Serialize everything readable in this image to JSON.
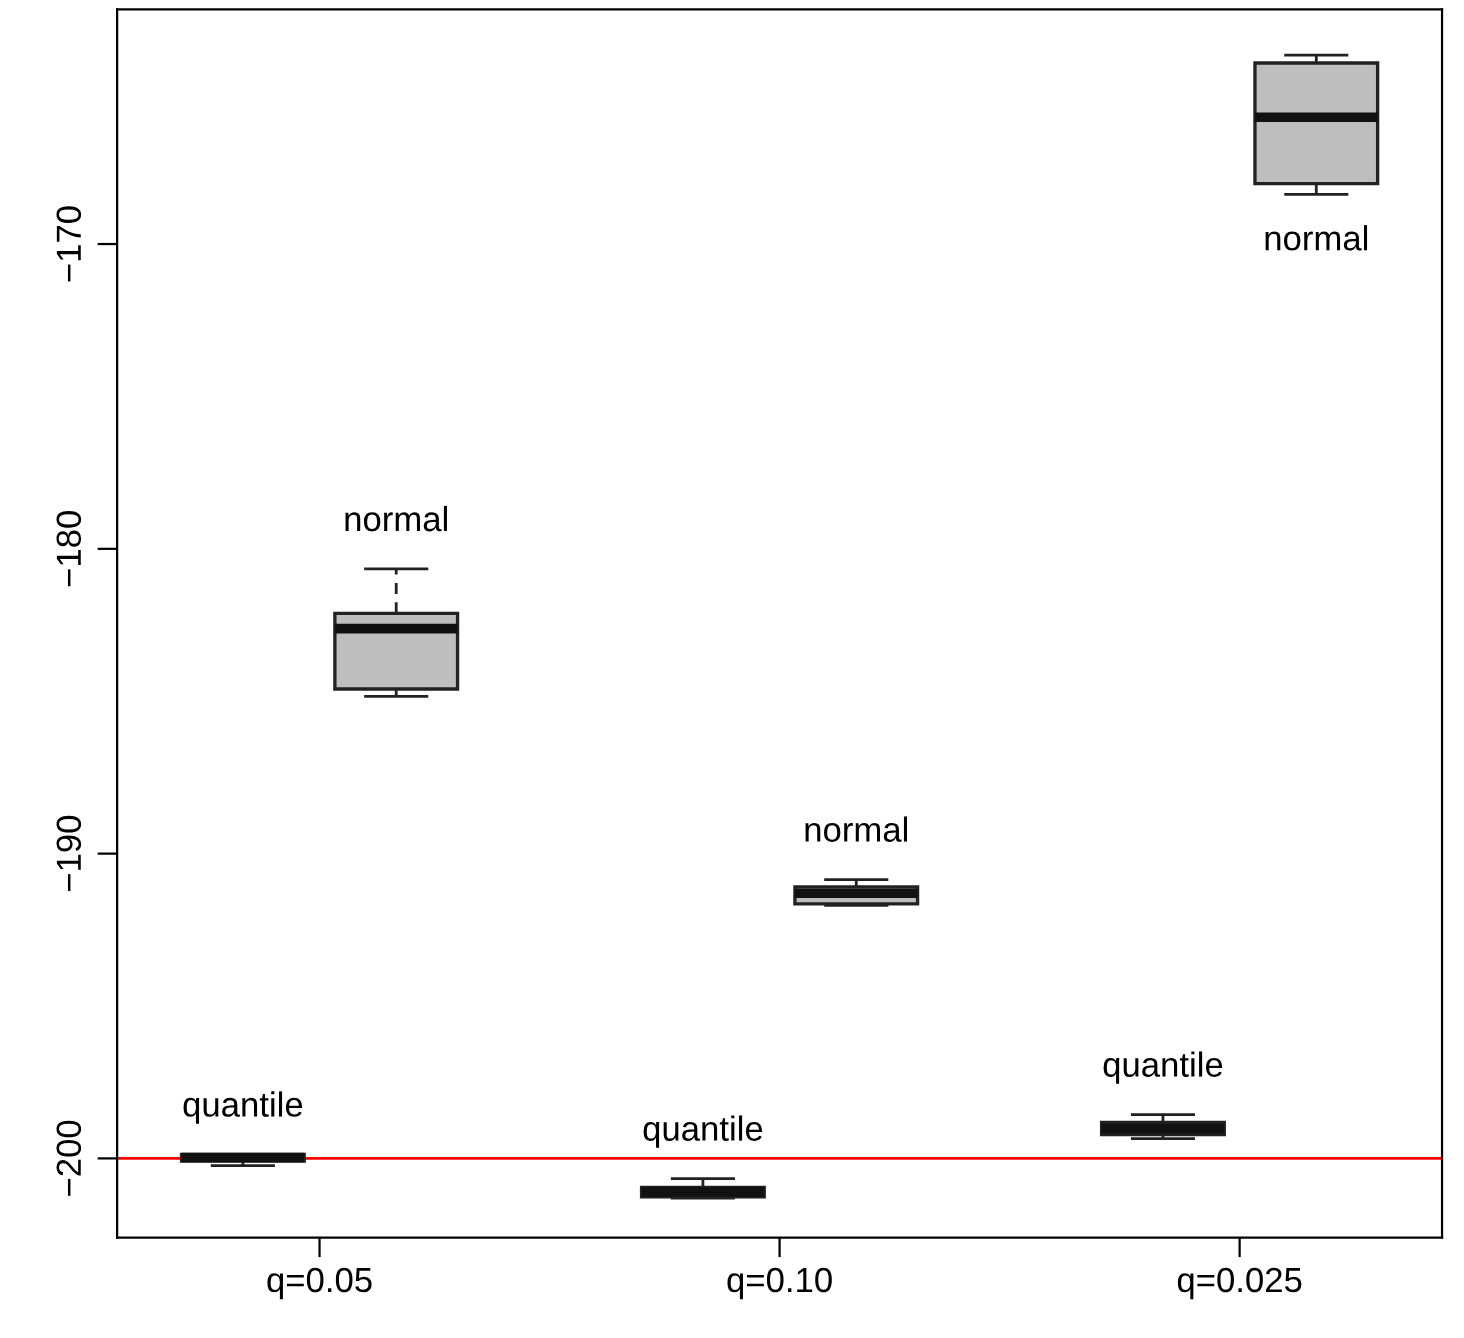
{
  "chart_data": {
    "type": "box",
    "categories": [
      "q=0.05",
      "q=0.10",
      "q=0.025"
    ],
    "series": [
      {
        "name": "quantile",
        "color": "#bebebe",
        "boxes": [
          {
            "low": -200.24,
            "q1": -200.09,
            "median": -199.97,
            "q3": -199.87,
            "high": -199.87
          },
          {
            "low": -201.3,
            "q1": -201.26,
            "median": -201.1,
            "q3": -200.95,
            "high": -200.66
          },
          {
            "low": -199.35,
            "q1": -199.22,
            "median": -199.02,
            "q3": -198.82,
            "high": -198.56
          }
        ]
      },
      {
        "name": "normal",
        "color": "#bebebe",
        "boxes": [
          {
            "low": -184.84,
            "q1": -184.6,
            "median": -182.62,
            "q3": -182.12,
            "high": -180.66
          },
          {
            "low": -191.7,
            "q1": -191.65,
            "median": -191.3,
            "q3": -191.09,
            "high": -190.85
          },
          {
            "low": -168.37,
            "q1": -168.02,
            "median": -165.84,
            "q3": -164.06,
            "high": -163.8
          }
        ]
      }
    ],
    "ylim": [
      -202.6,
      -162.3
    ],
    "yticks": [
      -200,
      -190,
      -180,
      -170
    ],
    "ref_lines": [
      {
        "axis": "y",
        "value": -200,
        "color": "#ff0000"
      }
    ],
    "grid": false,
    "legend": false
  }
}
